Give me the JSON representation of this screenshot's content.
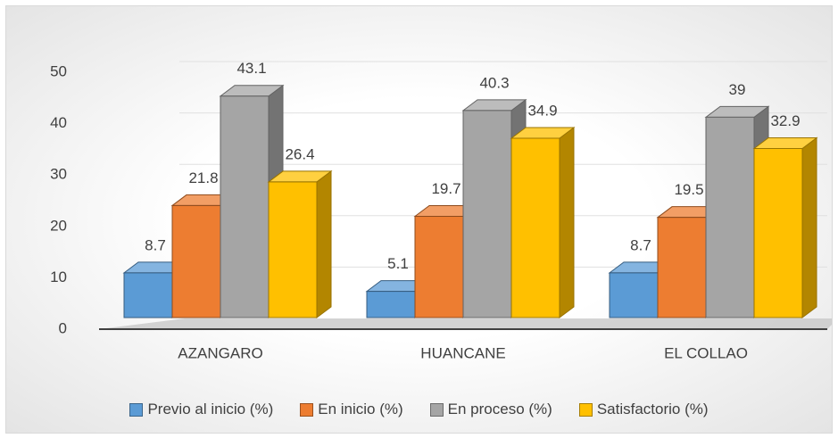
{
  "chart_data": {
    "type": "bar3d",
    "categories": [
      "AZANGARO",
      "HUANCANE",
      "EL COLLAO"
    ],
    "series": [
      {
        "name": "Previo al inicio (%)",
        "color": "#5b9bd5",
        "values": [
          8.7,
          5.1,
          8.7
        ]
      },
      {
        "name": "En inicio (%)",
        "color": "#ed7d31",
        "values": [
          21.8,
          19.7,
          19.5
        ]
      },
      {
        "name": "En proceso (%)",
        "color": "#a5a5a5",
        "values": [
          43.1,
          40.3,
          39
        ]
      },
      {
        "name": "Satisfactorio (%)",
        "color": "#ffc000",
        "values": [
          26.4,
          34.9,
          32.9
        ]
      }
    ],
    "ylim": [
      0,
      50
    ],
    "yticks": [
      0,
      10,
      20,
      30,
      40,
      50
    ],
    "grid": true,
    "legend": "bottom"
  }
}
